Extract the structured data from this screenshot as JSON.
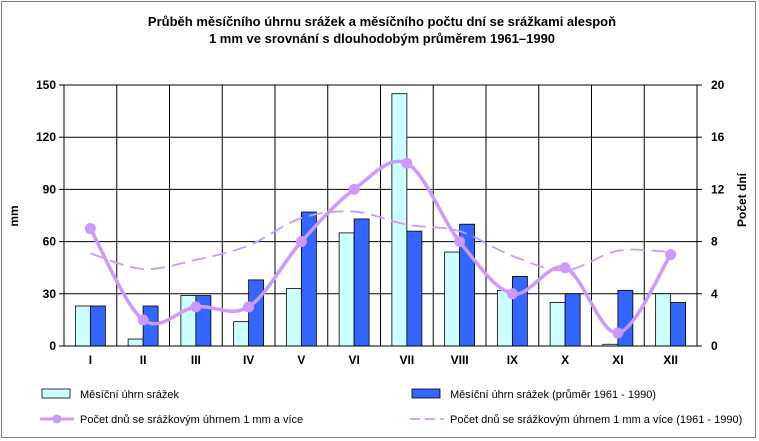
{
  "chart_data": {
    "type": "bar",
    "title_lines": [
      "Průběh měsíčního úhrnu srážek a měsíčního počtu dní se srážkami alespoň",
      "1 mm ve srovnání s dlouhodobým  průměrem 1961–1990"
    ],
    "ylabel": "mm",
    "y2label": "Počet dní",
    "ylim": [
      0,
      150
    ],
    "y2lim": [
      0,
      20
    ],
    "yticks": [
      "0",
      "30",
      "60",
      "90",
      "120",
      "150"
    ],
    "y2ticks": [
      "0",
      "4",
      "8",
      "12",
      "16",
      "20"
    ],
    "grid": true,
    "legend_position": "bottom",
    "categories": [
      "I",
      "II",
      "III",
      "IV",
      "V",
      "VI",
      "VII",
      "VIII",
      "IX",
      "X",
      "XI",
      "XII"
    ],
    "series": [
      {
        "name": "Měsíční úhrn srážek",
        "kind": "bar",
        "axis": "left",
        "color": "#ccffff",
        "values": [
          23,
          4,
          29,
          14,
          33,
          65,
          145,
          54,
          32,
          25,
          1,
          30
        ]
      },
      {
        "name": "Měsíční úhrn srážek (průměr 1961 - 1990)",
        "kind": "bar",
        "axis": "left",
        "color": "#3366ff",
        "values": [
          23,
          23,
          29,
          38,
          77,
          73,
          66,
          70,
          40,
          30,
          32,
          25
        ]
      },
      {
        "name": "Počet dnů se srážkovým úhrnem 1 mm a více",
        "kind": "line",
        "axis": "right",
        "color": "#cc99ff",
        "values": [
          9,
          2,
          3,
          3,
          8,
          12,
          14,
          8,
          4,
          6,
          1,
          7
        ]
      },
      {
        "name": "Počet dnů se srážkovým úhrnem 1 mm a více (1961 - 1990)",
        "kind": "dashed-line",
        "axis": "right",
        "color": "#cc99ff",
        "values": [
          7.1,
          5.9,
          6.6,
          7.7,
          9.8,
          10.3,
          9.3,
          8.8,
          6.9,
          5.8,
          7.3,
          7.2
        ]
      }
    ]
  }
}
